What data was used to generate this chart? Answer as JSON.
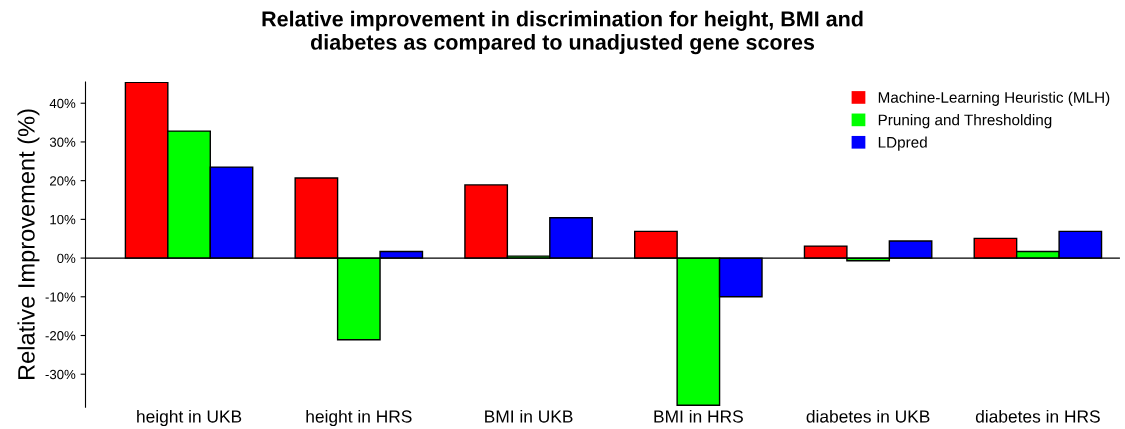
{
  "chart_data": {
    "type": "bar",
    "title": "Relative improvement in discrimination for height, BMI and\ndiabetes as compared to unadjusted gene scores",
    "ylabel": "Relative Improvement (%)",
    "categories": [
      "height in UKB",
      "height in HRS",
      "BMI in UKB",
      "BMI in HRS",
      "diabetes in UKB",
      "diabetes in HRS"
    ],
    "series": [
      {
        "name": "Machine-Learning Heuristic (MLH)",
        "color": "#ff0000",
        "values": [
          45.4,
          20.7,
          18.9,
          6.9,
          3.1,
          5.1
        ]
      },
      {
        "name": "Pruning and Thresholding",
        "color": "#00ff00",
        "values": [
          32.8,
          -21.1,
          0.5,
          -38.0,
          -0.7,
          1.7
        ]
      },
      {
        "name": "LDpred",
        "color": "#0000ff",
        "values": [
          23.5,
          1.7,
          10.4,
          -10.0,
          4.4,
          6.9
        ]
      }
    ],
    "ylim": [
      -38.5,
      45.5
    ],
    "yticks": [
      {
        "value": -30,
        "label": "-30%"
      },
      {
        "value": -20,
        "label": "-20%"
      },
      {
        "value": -10,
        "label": "-10%"
      },
      {
        "value": 0,
        "label": "0%"
      },
      {
        "value": 10,
        "label": "10%"
      },
      {
        "value": 20,
        "label": "20%"
      },
      {
        "value": 30,
        "label": "30%"
      },
      {
        "value": 40,
        "label": "40%"
      }
    ],
    "legend": "top right"
  }
}
